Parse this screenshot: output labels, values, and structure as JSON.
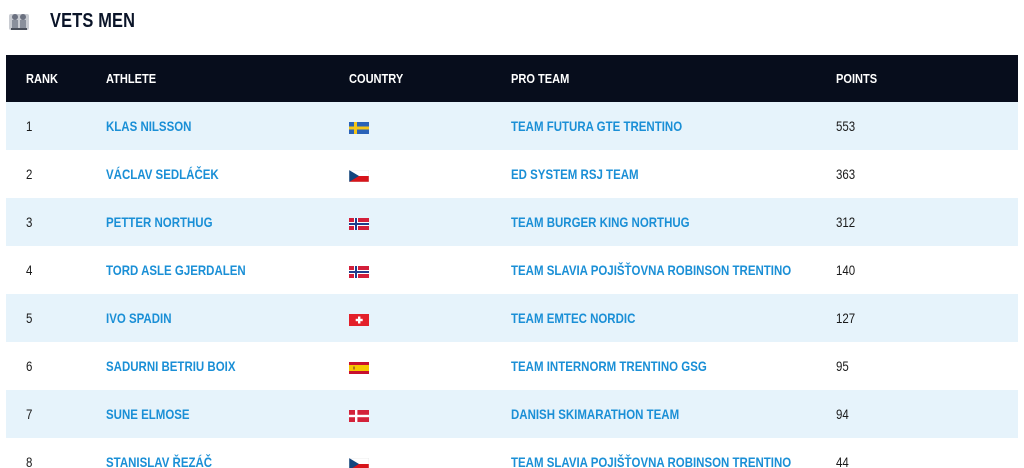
{
  "header": {
    "title": "VETS MEN",
    "icon": "category-emblem-icon"
  },
  "table": {
    "columns": {
      "rank": "RANK",
      "athlete": "ATHLETE",
      "country": "COUNTRY",
      "team": "PRO TEAM",
      "points": "POINTS"
    },
    "rows": [
      {
        "rank": "1",
        "athlete": "KLAS NILSSON",
        "country": "sweden",
        "team": "TEAM FUTURA GTE TRENTINO",
        "points": "553"
      },
      {
        "rank": "2",
        "athlete": "VÁCLAV SEDLÁČEK",
        "country": "czech-republic",
        "team": "ED SYSTEM RSJ TEAM",
        "points": "363"
      },
      {
        "rank": "3",
        "athlete": "PETTER NORTHUG",
        "country": "norway",
        "team": "TEAM BURGER KING NORTHUG",
        "points": "312"
      },
      {
        "rank": "4",
        "athlete": "TORD ASLE GJERDALEN",
        "country": "norway",
        "team": "TEAM SLAVIA POJIŠŤOVNA ROBINSON TRENTINO",
        "points": "140"
      },
      {
        "rank": "5",
        "athlete": "IVO SPADIN",
        "country": "switzerland",
        "team": "TEAM EMTEC NORDIC",
        "points": "127"
      },
      {
        "rank": "6",
        "athlete": "SADURNI BETRIU BOIX",
        "country": "spain",
        "team": "TEAM INTERNORM TRENTINO GSG",
        "points": "95"
      },
      {
        "rank": "7",
        "athlete": "SUNE ELMOSE",
        "country": "denmark",
        "team": "DANISH SKIMARATHON TEAM",
        "points": "94"
      },
      {
        "rank": "8",
        "athlete": "STANISLAV ŘEZÁČ",
        "country": "czech-republic",
        "team": "TEAM SLAVIA POJIŠŤOVNA ROBINSON TRENTINO",
        "points": "44"
      }
    ]
  }
}
